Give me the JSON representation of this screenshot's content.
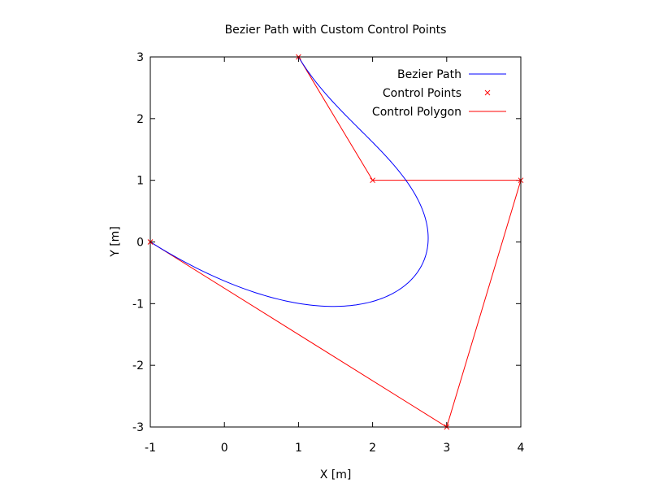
{
  "chart_data": {
    "type": "line",
    "title": "Bezier Path with Custom Control Points",
    "xlabel": "X [m]",
    "ylabel": "Y [m]",
    "xlim": [
      -1,
      4
    ],
    "ylim": [
      -3,
      3
    ],
    "xticks": [
      -1,
      0,
      1,
      2,
      3,
      4
    ],
    "yticks": [
      -3,
      -2,
      -1,
      0,
      1,
      2,
      3
    ],
    "grid": false,
    "legend_position": "top-right",
    "control_points": [
      {
        "x": -1,
        "y": 0
      },
      {
        "x": 3,
        "y": -3
      },
      {
        "x": 4,
        "y": 1
      },
      {
        "x": 2,
        "y": 1
      },
      {
        "x": 1,
        "y": 3
      }
    ],
    "series": [
      {
        "name": "Bezier Path",
        "kind": "curve",
        "color": "#0000ff"
      },
      {
        "name": "Control Points",
        "kind": "points",
        "color": "#ff0000"
      },
      {
        "name": "Control Polygon",
        "kind": "polyline",
        "color": "#ff0000"
      }
    ]
  }
}
